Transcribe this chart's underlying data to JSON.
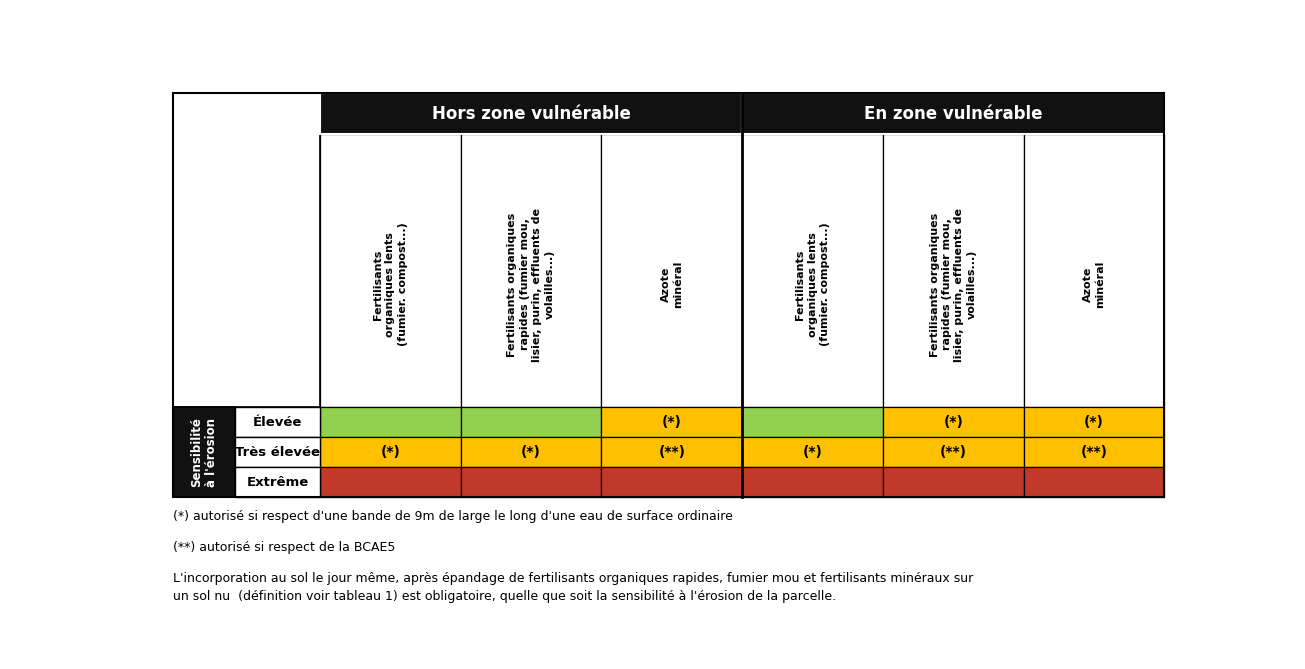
{
  "fig_width": 13.05,
  "fig_height": 6.69,
  "background_color": "#ffffff",
  "header_bg": "#111111",
  "header_text_color": "#ffffff",
  "header1_text": "Hors zone vulnérable",
  "header2_text": "En zone vulnérable",
  "col_headers": [
    "Fertilisants\norganiques lents\n(fumier. compost...)",
    "Fertilisants organiques\nrapides (fumier mou,\nlisier, purin, effluents de\nvolailles...)",
    "Azote\nminéral",
    "Fertilisants\norganiques lents\n(fumier. compost...)",
    "Fertilisants organiques\nrapides (fumier mou,\nlisier, purin, effluents de\nvolailles...)",
    "Azote\nminéral"
  ],
  "row_labels": [
    "Élevée",
    "Très élevée",
    "Extrême"
  ],
  "sensibilite_label": "Sensibilité\nà l'érosion",
  "colors": {
    "green": "#92d050",
    "yellow": "#ffc000",
    "red": "#c0392b",
    "white": "#ffffff",
    "black": "#000000",
    "header_bg": "#111111"
  },
  "cell_colors": [
    [
      "green",
      "green",
      "yellow",
      "green",
      "yellow",
      "yellow"
    ],
    [
      "yellow",
      "yellow",
      "yellow",
      "yellow",
      "yellow",
      "yellow"
    ],
    [
      "red",
      "red",
      "red",
      "red",
      "red",
      "red"
    ]
  ],
  "cell_text": [
    [
      "",
      "",
      "(*)",
      "",
      "(*)",
      "(*)"
    ],
    [
      "(*)",
      "(*)",
      "(**)",
      "(*)",
      "(**)",
      "(**)"
    ],
    [
      "",
      "",
      "",
      "",
      "",
      ""
    ]
  ],
  "footnote1": "(*) autorisé si respect d'une bande de 9m de large le long d'une eau de surface ordinaire",
  "footnote2": "(**) autorisé si respect de la BCAE5",
  "footnote3": "L'incorporation au sol le jour même, après épandage de fertilisants organiques rapides, fumier mou et fertilisants minéraux sur\nun sol nu  (définition voir tableau 1) est obligatoire, quelle que soit la sensibilité à l'érosion de la parcelle."
}
